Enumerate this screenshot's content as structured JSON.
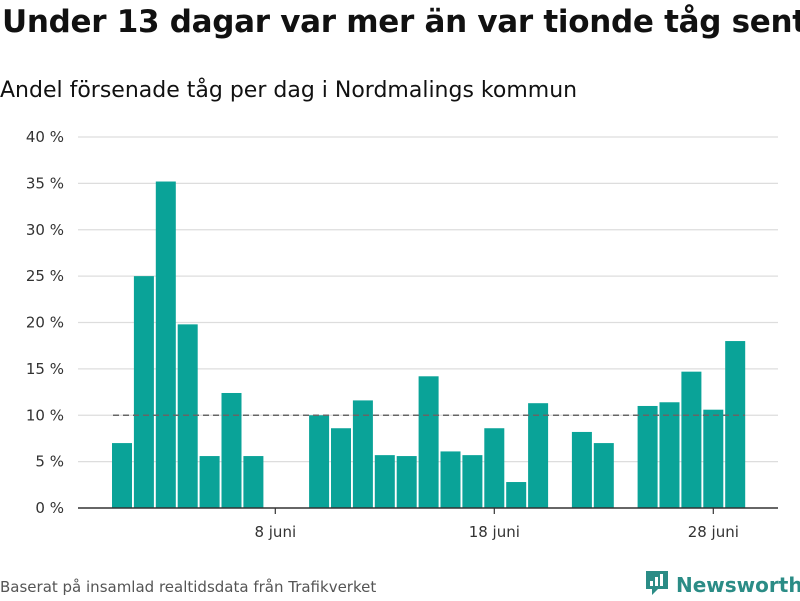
{
  "title": "Under 13 dagar var mer än var tionde tåg sent",
  "subtitle": "Andel försenade tåg per dag i Nordmalings kommun",
  "footer": "Baserat på insamlad realtidsdata från Trafikverket",
  "brand": {
    "name": "Newsworthy",
    "icon": "bar-chart-logo-icon",
    "color": "#2b8c86"
  },
  "colors": {
    "bar": "#0aa398",
    "reference_line": "#666666",
    "grid": "#dddddd"
  },
  "chart_data": {
    "type": "bar",
    "x_tick_labels": [
      "8 juni",
      "18 juni",
      "28 juni"
    ],
    "x_ticks": [
      "2022-06-08",
      "2022-06-18",
      "2022-06-28"
    ],
    "categories": [
      "2022-06-01",
      "2022-06-02",
      "2022-06-03",
      "2022-06-04",
      "2022-06-05",
      "2022-06-06",
      "2022-06-07",
      "2022-06-08",
      "2022-06-09",
      "2022-06-10",
      "2022-06-11",
      "2022-06-12",
      "2022-06-13",
      "2022-06-14",
      "2022-06-15",
      "2022-06-16",
      "2022-06-17",
      "2022-06-18",
      "2022-06-19",
      "2022-06-20",
      "2022-06-21",
      "2022-06-22",
      "2022-06-23",
      "2022-06-24",
      "2022-06-25",
      "2022-06-26",
      "2022-06-27",
      "2022-06-28",
      "2022-06-29"
    ],
    "values": [
      7,
      25,
      35.2,
      19.8,
      5.6,
      12.4,
      5.6,
      null,
      null,
      10,
      8.6,
      11.6,
      5.7,
      5.6,
      14.2,
      6.1,
      5.7,
      8.6,
      2.8,
      11.3,
      null,
      8.2,
      7,
      null,
      11,
      11.4,
      14.7,
      10.6,
      18
    ],
    "reference_value": 10,
    "ylim": [
      0,
      40
    ],
    "y_ticks": [
      0,
      5,
      10,
      15,
      20,
      25,
      30,
      35,
      40
    ],
    "y_tick_suffix": " %",
    "grid": true
  }
}
